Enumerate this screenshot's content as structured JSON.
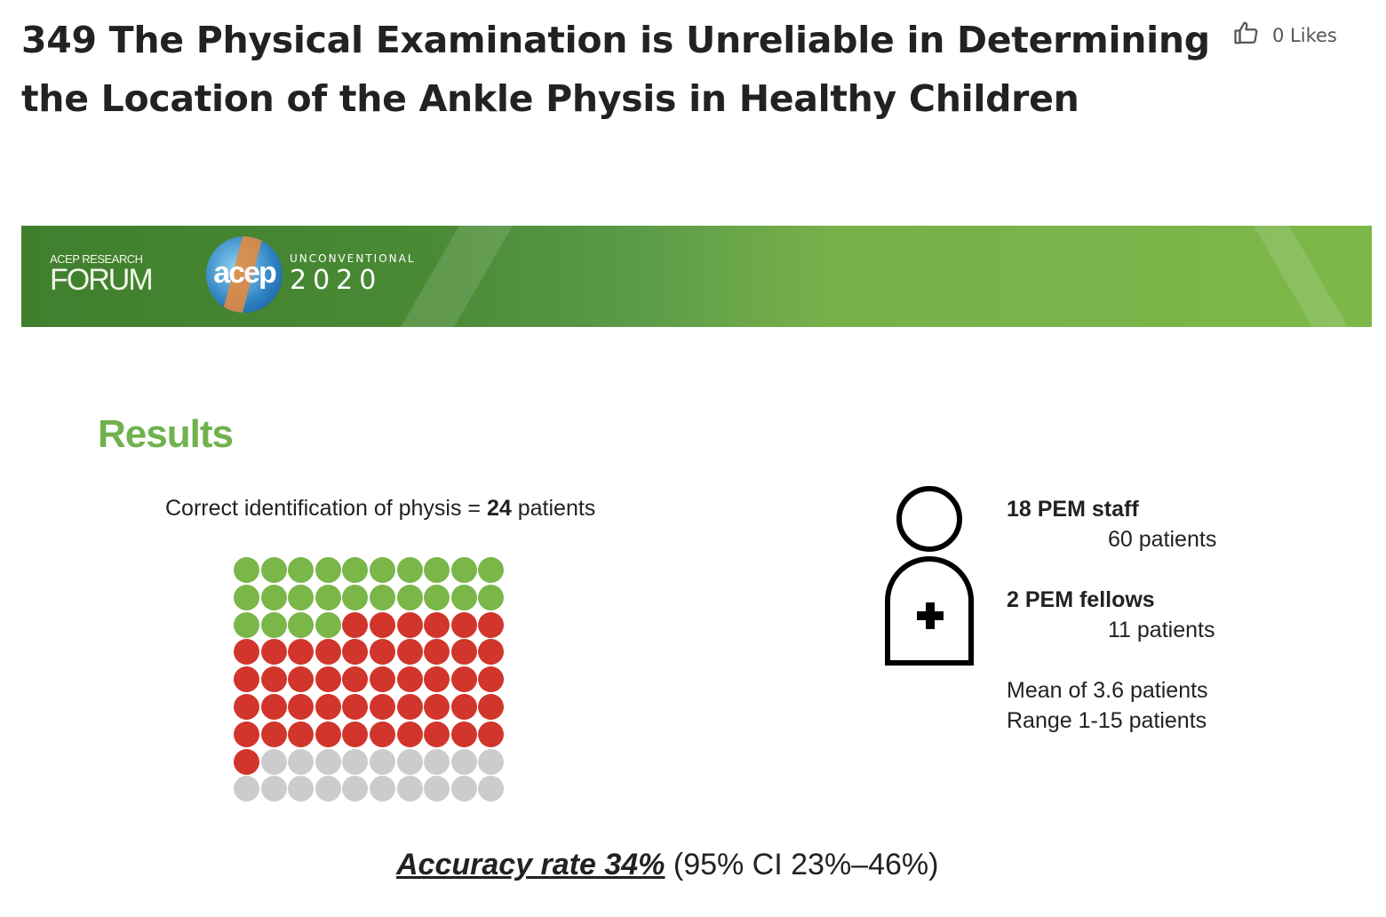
{
  "title": "349 The Physical Examination is Unreliable in Determining the Location of the Ankle Physis in Healthy Children",
  "likes": {
    "label": "0 Likes",
    "icon": "thumbs-up-icon"
  },
  "banner": {
    "forum_small": "ACEP RESEARCH",
    "forum_big": "FORUM",
    "logo_text": "acep",
    "tagline": "UNCONVENTIONAL",
    "year": "2020"
  },
  "slide": {
    "heading": "Results",
    "correct_prefix": "Correct identification of physis = ",
    "correct_count": "24",
    "correct_suffix": " patients",
    "dot_grid": {
      "columns": 10,
      "green": 24,
      "red": 47,
      "gray": 19,
      "colors": {
        "green": "#7ab648",
        "red": "#d1352b",
        "gray": "#cccccc"
      }
    },
    "staff_label": "18 PEM staff",
    "staff_patients": "60 patients",
    "fellows_label": "2 PEM fellows",
    "fellows_patients": "11 patients",
    "mean": "Mean of 3.6 patients",
    "range": "Range 1-15 patients",
    "accuracy_label": "Accuracy rate 34%",
    "accuracy_ci": " (95% CI 23%–46%)"
  }
}
